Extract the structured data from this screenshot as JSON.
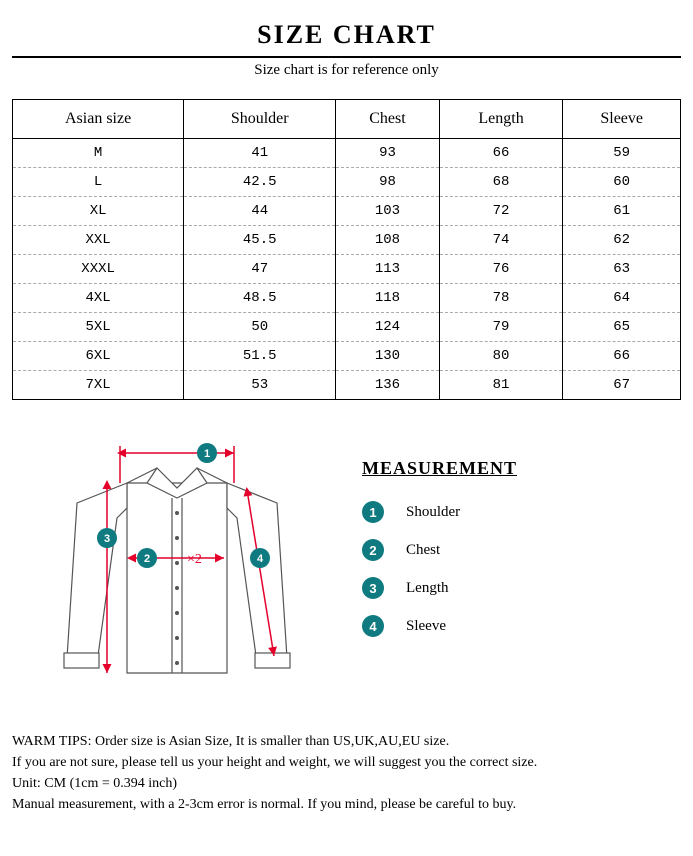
{
  "title": "SIZE CHART",
  "subtitle": "Size chart is for reference only",
  "table": {
    "columns": [
      "Asian size",
      "Shoulder",
      "Chest",
      "Length",
      "Sleeve"
    ],
    "rows": [
      [
        "M",
        "41",
        "93",
        "66",
        "59"
      ],
      [
        "L",
        "42.5",
        "98",
        "68",
        "60"
      ],
      [
        "XL",
        "44",
        "103",
        "72",
        "61"
      ],
      [
        "XXL",
        "45.5",
        "108",
        "74",
        "62"
      ],
      [
        "XXXL",
        "47",
        "113",
        "76",
        "63"
      ],
      [
        "4XL",
        "48.5",
        "118",
        "78",
        "64"
      ],
      [
        "5XL",
        "50",
        "124",
        "79",
        "65"
      ],
      [
        "6XL",
        "51.5",
        "130",
        "80",
        "66"
      ],
      [
        "7XL",
        "53",
        "136",
        "81",
        "67"
      ]
    ]
  },
  "diagram": {
    "marker_color": "#0f7a80",
    "arrow_color": "#e4002b",
    "outline_color": "#555555",
    "x2_label": "×2",
    "markers": [
      "1",
      "2",
      "3",
      "4"
    ]
  },
  "legend": {
    "title": "MEASUREMENT",
    "items": [
      {
        "num": "1",
        "label": "Shoulder"
      },
      {
        "num": "2",
        "label": "Chest"
      },
      {
        "num": "3",
        "label": "Length"
      },
      {
        "num": "4",
        "label": "Sleeve"
      }
    ]
  },
  "tips": {
    "line1": "WARM TIPS: Order size is Asian Size, It is smaller than US,UK,AU,EU size.",
    "line2": "If you are not sure, please tell us your height and weight, we will suggest you the correct size.",
    "line3": "Unit: CM (1cm = 0.394 inch)",
    "line4": "Manual measurement, with a 2-3cm error is normal. If you mind, please be careful to buy."
  }
}
